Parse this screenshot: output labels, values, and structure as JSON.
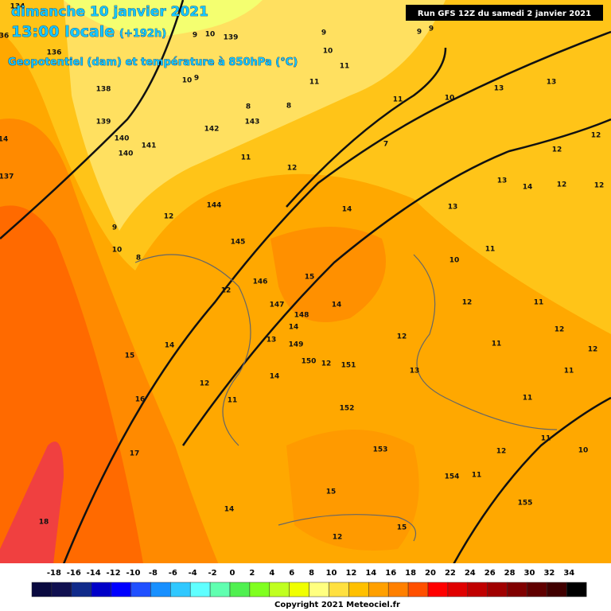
{
  "header": {
    "date": "dimanche 10 janvier 2021",
    "time": "13:00 locale",
    "lead": "(+192h)",
    "parameter": "Geopotentiel (dam) et température à 850hPa (°C)"
  },
  "run": "Run GFS 12Z du samedi 2 janvier 2021",
  "map_labels": [
    "134",
    "36",
    "136",
    "138",
    "139",
    "140",
    "140",
    "141",
    "142",
    "143",
    "144",
    "145",
    "146",
    "147",
    "148",
    "149",
    "150",
    "151",
    "152",
    "153",
    "154",
    "155",
    "137",
    "139",
    "10",
    "9",
    "9",
    "9",
    "9",
    "10",
    "11",
    "11",
    "10",
    "9",
    "8",
    "8",
    "11",
    "10",
    "13",
    "13",
    "12",
    "12",
    "11",
    "12",
    "13",
    "14",
    "12",
    "12",
    "14",
    "13",
    "12",
    "9",
    "10",
    "8",
    "11",
    "10",
    "15",
    "12",
    "14",
    "12",
    "11",
    "14",
    "12",
    "13",
    "12",
    "11",
    "12",
    "15",
    "14",
    "12",
    "13",
    "11",
    "14",
    "12",
    "16",
    "11",
    "11",
    "11",
    "10",
    "17",
    "12",
    "11",
    "15",
    "14",
    "18",
    "15",
    "12",
    "14",
    "7"
  ],
  "legend": {
    "labels": [
      -18,
      -16,
      -14,
      -12,
      -10,
      -8,
      -6,
      -4,
      -2,
      0,
      2,
      4,
      6,
      8,
      10,
      12,
      14,
      16,
      18,
      20,
      22,
      24,
      26,
      28,
      30,
      32,
      34
    ]
  },
  "copyright": "Copyright 2021 Meteociel.fr"
}
